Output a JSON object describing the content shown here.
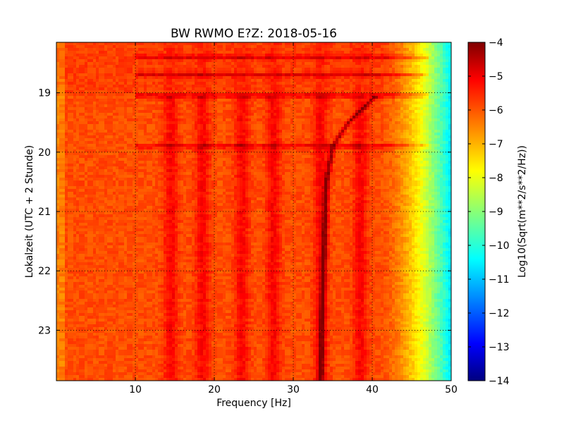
{
  "chart_data": {
    "type": "heatmap",
    "title": "BW RWMO E?Z: 2018-05-16",
    "xlabel": "Frequency [Hz]",
    "ylabel": "Lokalzeit (UTC + 2 Stunde)",
    "colorbar_label": "Log10(Sqrt(m**2/s**2/Hz))",
    "xlim": [
      0,
      50
    ],
    "ylim": [
      18.15,
      23.85
    ],
    "y_inverted": true,
    "x_ticks": [
      10,
      20,
      30,
      40,
      50
    ],
    "x_tick_labels": [
      "10",
      "20",
      "30",
      "40",
      "50"
    ],
    "y_ticks": [
      19,
      20,
      21,
      22,
      23
    ],
    "y_tick_labels": [
      "19",
      "20",
      "21",
      "22",
      "23"
    ],
    "colorbar_range": [
      -14,
      -4
    ],
    "colorbar_ticks": [
      -4,
      -5,
      -6,
      -7,
      -8,
      -9,
      -10,
      -11,
      -12,
      -13,
      -14
    ],
    "colorbar_tick_labels": [
      "−4",
      "−5",
      "−6",
      "−7",
      "−8",
      "−9",
      "−10",
      "−11",
      "−12",
      "−13",
      "−14"
    ],
    "colormap": "jet",
    "grid": true,
    "features": {
      "background_level": -6.0,
      "highfreq_rolloff_start_hz": 41,
      "highfreq_rolloff_end_hz": 50,
      "highfreq_level_at_50hz": -10.5,
      "vertical_bands_hz": [
        14.5,
        18.5,
        23.5,
        27.5,
        33.5,
        38.5
      ],
      "horizontal_lines_time": [
        18.4,
        18.7,
        19.05,
        19.9
      ],
      "drifting_line": [
        {
          "t": 19.05,
          "f": 40.5
        },
        {
          "t": 19.5,
          "f": 37.0
        },
        {
          "t": 19.9,
          "f": 35.0
        },
        {
          "t": 20.5,
          "f": 34.2
        },
        {
          "t": 21.2,
          "f": 34.0
        },
        {
          "t": 22.0,
          "f": 33.8
        },
        {
          "t": 23.0,
          "f": 33.6
        },
        {
          "t": 23.85,
          "f": 33.5
        }
      ]
    }
  }
}
